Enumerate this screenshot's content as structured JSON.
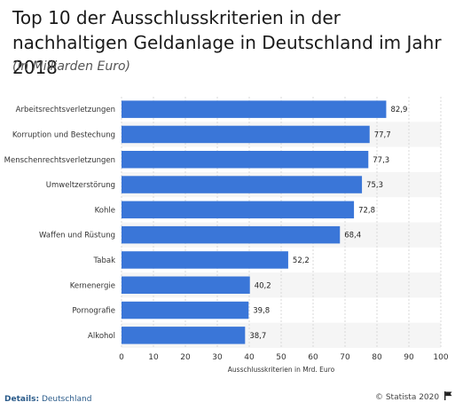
{
  "chart_data": {
    "type": "bar",
    "orientation": "horizontal",
    "title": "Top 10 der Ausschlusskriterien in der nachhaltigen Geldanlage in Deutschland im Jahr 2018",
    "subtitle": "(in Milliarden Euro)",
    "categories": [
      "Arbeitsrechtsverletzungen",
      "Korruption und Bestechung",
      "Menschenrechtsverletzungen",
      "Umweltzerstörung",
      "Kohle",
      "Waffen und Rüstung",
      "Tabak",
      "Kernenergie",
      "Pornografie",
      "Alkohol"
    ],
    "values": [
      82.9,
      77.7,
      77.3,
      75.3,
      72.8,
      68.4,
      52.2,
      40.2,
      39.8,
      38.7
    ],
    "value_labels": [
      "82,9",
      "77,7",
      "77,3",
      "75,3",
      "72,8",
      "68,4",
      "52,2",
      "40,2",
      "39,8",
      "38,7"
    ],
    "xlabel": "Ausschlusskriterien in Mrd. Euro",
    "ylabel": "",
    "xlim": [
      0,
      100
    ],
    "xticks": [
      "0",
      "10",
      "20",
      "30",
      "40",
      "50",
      "60",
      "70",
      "80",
      "90",
      "100"
    ],
    "grid": true,
    "bar_color": "#3a76d8"
  },
  "footer": {
    "details_label": "Details:",
    "details_value": "Deutschland",
    "source": "© Statista 2020"
  },
  "icons": {
    "source_flag": "flag-icon"
  }
}
